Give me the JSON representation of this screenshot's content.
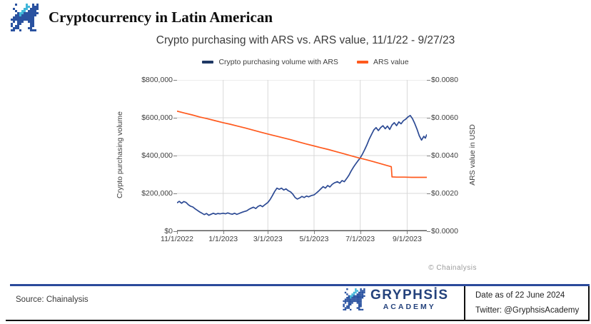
{
  "header": {
    "title": "Cryptocurrency in Latin American",
    "logo_icon": "gryphsis-dragon-icon"
  },
  "colors": {
    "accent_blue": "#2b4a9b",
    "legend_blue": "#1f3864",
    "line_blue": "#2c4a94",
    "line_orange": "#ff5a1e",
    "dragon_blue": "#2a52a0",
    "dragon_cyan": "#41b6d9",
    "gridline": "#d9d9d9",
    "axis_line": "#595959",
    "brand_text": "#24427c"
  },
  "chart_data": {
    "type": "line",
    "title": "Crypto purchasing with ARS vs. ARS value, 11/1/22 - 9/27/23",
    "watermark": "© Chainalysis",
    "x_unit": "days since 11/1/2022",
    "x_range": [
      0,
      330
    ],
    "x_ticks": [
      {
        "day": 0,
        "label": "11/1/2022"
      },
      {
        "day": 61,
        "label": "1/1/2023"
      },
      {
        "day": 120,
        "label": "3/1/2023"
      },
      {
        "day": 181,
        "label": "5/1/2023"
      },
      {
        "day": 242,
        "label": "7/1/2023"
      },
      {
        "day": 304,
        "label": "9/1/2023"
      }
    ],
    "left_axis": {
      "label": "Crypto purchasing volume",
      "range": [
        0,
        800000
      ],
      "ticks": [
        {
          "v": 0,
          "label": "$0"
        },
        {
          "v": 200000,
          "label": "$200,000"
        },
        {
          "v": 400000,
          "label": "$400,000"
        },
        {
          "v": 600000,
          "label": "$600,000"
        },
        {
          "v": 800000,
          "label": "$800,000"
        }
      ]
    },
    "right_axis": {
      "label": "ARS value in USD",
      "range": [
        0,
        0.008
      ],
      "ticks": [
        {
          "v": 0.0,
          "label": "$0.0000"
        },
        {
          "v": 0.002,
          "label": "$0.0020"
        },
        {
          "v": 0.004,
          "label": "$0.0040"
        },
        {
          "v": 0.006,
          "label": "$0.0060"
        },
        {
          "v": 0.008,
          "label": "$0.0080"
        }
      ]
    },
    "legend": [
      {
        "label": "Crypto purchasing volume with ARS",
        "color": "#1f3864"
      },
      {
        "label": "ARS value",
        "color": "#ff5a1e"
      }
    ],
    "series": [
      {
        "name": "Crypto purchasing volume with ARS",
        "axis": "left",
        "color": "#2c4a94",
        "points": [
          [
            0,
            150000
          ],
          [
            3,
            158000
          ],
          [
            6,
            148000
          ],
          [
            9,
            157000
          ],
          [
            12,
            152000
          ],
          [
            15,
            140000
          ],
          [
            18,
            132000
          ],
          [
            21,
            128000
          ],
          [
            24,
            118000
          ],
          [
            27,
            110000
          ],
          [
            30,
            102000
          ],
          [
            33,
            95000
          ],
          [
            36,
            88000
          ],
          [
            39,
            94000
          ],
          [
            42,
            84000
          ],
          [
            45,
            90000
          ],
          [
            48,
            95000
          ],
          [
            51,
            90000
          ],
          [
            54,
            94000
          ],
          [
            57,
            92000
          ],
          [
            61,
            95000
          ],
          [
            64,
            92000
          ],
          [
            67,
            97000
          ],
          [
            70,
            93000
          ],
          [
            73,
            90000
          ],
          [
            76,
            95000
          ],
          [
            79,
            89000
          ],
          [
            82,
            94000
          ],
          [
            85,
            99000
          ],
          [
            88,
            103000
          ],
          [
            92,
            108000
          ],
          [
            95,
            116000
          ],
          [
            98,
            122000
          ],
          [
            101,
            127000
          ],
          [
            104,
            120000
          ],
          [
            107,
            131000
          ],
          [
            110,
            137000
          ],
          [
            113,
            130000
          ],
          [
            116,
            140000
          ],
          [
            120,
            152000
          ],
          [
            123,
            168000
          ],
          [
            126,
            188000
          ],
          [
            129,
            210000
          ],
          [
            132,
            228000
          ],
          [
            135,
            222000
          ],
          [
            138,
            228000
          ],
          [
            141,
            218000
          ],
          [
            144,
            224000
          ],
          [
            147,
            214000
          ],
          [
            150,
            208000
          ],
          [
            153,
            196000
          ],
          [
            156,
            178000
          ],
          [
            159,
            170000
          ],
          [
            162,
            176000
          ],
          [
            165,
            184000
          ],
          [
            168,
            178000
          ],
          [
            171,
            186000
          ],
          [
            174,
            182000
          ],
          [
            177,
            188000
          ],
          [
            181,
            192000
          ],
          [
            184,
            202000
          ],
          [
            187,
            212000
          ],
          [
            190,
            224000
          ],
          [
            193,
            236000
          ],
          [
            196,
            228000
          ],
          [
            199,
            242000
          ],
          [
            202,
            234000
          ],
          [
            205,
            248000
          ],
          [
            208,
            256000
          ],
          [
            212,
            262000
          ],
          [
            215,
            254000
          ],
          [
            218,
            268000
          ],
          [
            221,
            262000
          ],
          [
            224,
            278000
          ],
          [
            227,
            296000
          ],
          [
            230,
            318000
          ],
          [
            233,
            338000
          ],
          [
            236,
            356000
          ],
          [
            239,
            372000
          ],
          [
            242,
            388000
          ],
          [
            245,
            408000
          ],
          [
            248,
            432000
          ],
          [
            251,
            458000
          ],
          [
            254,
            488000
          ],
          [
            257,
            512000
          ],
          [
            260,
            536000
          ],
          [
            263,
            548000
          ],
          [
            266,
            532000
          ],
          [
            269,
            548000
          ],
          [
            272,
            558000
          ],
          [
            275,
            542000
          ],
          [
            278,
            556000
          ],
          [
            281,
            538000
          ],
          [
            284,
            562000
          ],
          [
            287,
            574000
          ],
          [
            290,
            558000
          ],
          [
            293,
            578000
          ],
          [
            296,
            568000
          ],
          [
            299,
            584000
          ],
          [
            302,
            592000
          ],
          [
            305,
            604000
          ],
          [
            308,
            612000
          ],
          [
            311,
            596000
          ],
          [
            314,
            570000
          ],
          [
            317,
            540000
          ],
          [
            320,
            505000
          ],
          [
            323,
            482000
          ],
          [
            326,
            502000
          ],
          [
            328,
            492000
          ],
          [
            330,
            512000
          ]
        ]
      },
      {
        "name": "ARS value",
        "axis": "right",
        "color": "#ff5a1e",
        "points": [
          [
            0,
            0.00635
          ],
          [
            10,
            0.00625
          ],
          [
            20,
            0.00615
          ],
          [
            30,
            0.00604
          ],
          [
            40,
            0.00595
          ],
          [
            50,
            0.00585
          ],
          [
            61,
            0.00574
          ],
          [
            70,
            0.00566
          ],
          [
            80,
            0.00556
          ],
          [
            90,
            0.00546
          ],
          [
            100,
            0.00535
          ],
          [
            110,
            0.00524
          ],
          [
            120,
            0.00514
          ],
          [
            130,
            0.00504
          ],
          [
            140,
            0.00494
          ],
          [
            150,
            0.00484
          ],
          [
            160,
            0.00473
          ],
          [
            170,
            0.00462
          ],
          [
            181,
            0.00451
          ],
          [
            190,
            0.00442
          ],
          [
            200,
            0.00432
          ],
          [
            210,
            0.00421
          ],
          [
            220,
            0.0041
          ],
          [
            230,
            0.00399
          ],
          [
            240,
            0.00388
          ],
          [
            250,
            0.00378
          ],
          [
            260,
            0.00367
          ],
          [
            270,
            0.00356
          ],
          [
            277,
            0.00348
          ],
          [
            283,
            0.00341
          ],
          [
            284,
            0.00287
          ],
          [
            290,
            0.00286
          ],
          [
            300,
            0.00286
          ],
          [
            310,
            0.00285
          ],
          [
            320,
            0.00285
          ],
          [
            330,
            0.00285
          ]
        ]
      }
    ]
  },
  "footer": {
    "source": "Source: Chainalysis",
    "brand": {
      "name": "GRYPHSİS",
      "academy": "ACADEMY",
      "logo_icon": "gryphsis-dragon-icon"
    },
    "info": {
      "date": "Date as of 22 June 2024",
      "twitter": "Twitter: @GryphsisAcademy"
    }
  }
}
